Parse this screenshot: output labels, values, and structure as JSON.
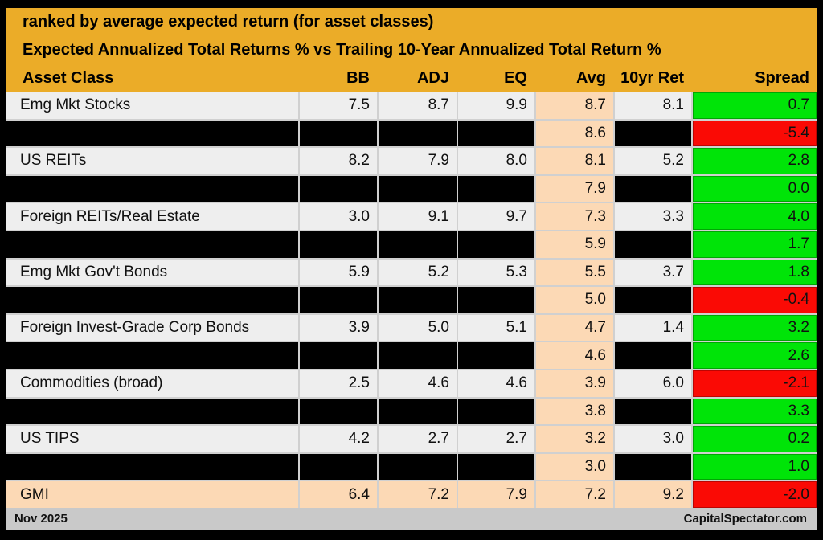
{
  "chart_data": {
    "type": "table",
    "title": "ranked by average expected return (for asset classes)",
    "subtitle": "Expected Annualized Total Returns % vs Trailing 10-Year Annualized Total Return %",
    "columns": [
      "Asset Class",
      "BB",
      "ADJ",
      "EQ",
      "Avg",
      "10yr Ret",
      "Spread"
    ],
    "rows": [
      {
        "asset": "Emg Mkt Stocks",
        "bb": "7.5",
        "adj": "8.7",
        "eq": "9.9",
        "avg": "8.7",
        "ret10": "8.1",
        "spread": "0.7",
        "spread_color": "green",
        "redacted": false,
        "highlight": false
      },
      {
        "asset": "",
        "bb": "",
        "adj": "",
        "eq": "",
        "avg": "8.6",
        "ret10": "",
        "spread": "-5.4",
        "spread_color": "red",
        "redacted": true,
        "highlight": false
      },
      {
        "asset": "US REITs",
        "bb": "8.2",
        "adj": "7.9",
        "eq": "8.0",
        "avg": "8.1",
        "ret10": "5.2",
        "spread": "2.8",
        "spread_color": "green",
        "redacted": false,
        "highlight": false
      },
      {
        "asset": "",
        "bb": "",
        "adj": "",
        "eq": "",
        "avg": "7.9",
        "ret10": "",
        "spread": "0.0",
        "spread_color": "green",
        "redacted": true,
        "highlight": false
      },
      {
        "asset": "Foreign REITs/Real Estate",
        "bb": "3.0",
        "adj": "9.1",
        "eq": "9.7",
        "avg": "7.3",
        "ret10": "3.3",
        "spread": "4.0",
        "spread_color": "green",
        "redacted": false,
        "highlight": false
      },
      {
        "asset": "",
        "bb": "",
        "adj": "",
        "eq": "",
        "avg": "5.9",
        "ret10": "",
        "spread": "1.7",
        "spread_color": "green",
        "redacted": true,
        "highlight": false
      },
      {
        "asset": "Emg Mkt Gov't Bonds",
        "bb": "5.9",
        "adj": "5.2",
        "eq": "5.3",
        "avg": "5.5",
        "ret10": "3.7",
        "spread": "1.8",
        "spread_color": "green",
        "redacted": false,
        "highlight": false
      },
      {
        "asset": "",
        "bb": "",
        "adj": "",
        "eq": "",
        "avg": "5.0",
        "ret10": "",
        "spread": "-0.4",
        "spread_color": "red",
        "redacted": true,
        "highlight": false
      },
      {
        "asset": "Foreign Invest-Grade Corp Bonds",
        "bb": "3.9",
        "adj": "5.0",
        "eq": "5.1",
        "avg": "4.7",
        "ret10": "1.4",
        "spread": "3.2",
        "spread_color": "green",
        "redacted": false,
        "highlight": false
      },
      {
        "asset": "",
        "bb": "",
        "adj": "",
        "eq": "",
        "avg": "4.6",
        "ret10": "",
        "spread": "2.6",
        "spread_color": "green",
        "redacted": true,
        "highlight": false
      },
      {
        "asset": "Commodities (broad)",
        "bb": "2.5",
        "adj": "4.6",
        "eq": "4.6",
        "avg": "3.9",
        "ret10": "6.0",
        "spread": "-2.1",
        "spread_color": "red",
        "redacted": false,
        "highlight": false
      },
      {
        "asset": "",
        "bb": "",
        "adj": "",
        "eq": "",
        "avg": "3.8",
        "ret10": "",
        "spread": "3.3",
        "spread_color": "green",
        "redacted": true,
        "highlight": false
      },
      {
        "asset": "US TIPS",
        "bb": "4.2",
        "adj": "2.7",
        "eq": "2.7",
        "avg": "3.2",
        "ret10": "3.0",
        "spread": "0.2",
        "spread_color": "green",
        "redacted": false,
        "highlight": false
      },
      {
        "asset": "",
        "bb": "",
        "adj": "",
        "eq": "",
        "avg": "3.0",
        "ret10": "",
        "spread": "1.0",
        "spread_color": "green",
        "redacted": true,
        "highlight": false
      },
      {
        "asset": "GMI",
        "bb": "6.4",
        "adj": "7.2",
        "eq": "7.9",
        "avg": "7.2",
        "ret10": "9.2",
        "spread": "-2.0",
        "spread_color": "red",
        "redacted": false,
        "highlight": true
      }
    ]
  },
  "footer": {
    "date": "Nov 2025",
    "source": "CapitalSpectator.com"
  },
  "colors": {
    "header_bg": "#EBAC28",
    "row_bg": "#EEEEEE",
    "redacted_bg": "#000000",
    "avg_column_bg": "#FCD9B5",
    "positive_spread": "#00E408",
    "negative_spread": "#FA0A05",
    "gridline": "#D0D0D0",
    "footer_bg": "#C9C9C9",
    "frame": "#000000"
  }
}
